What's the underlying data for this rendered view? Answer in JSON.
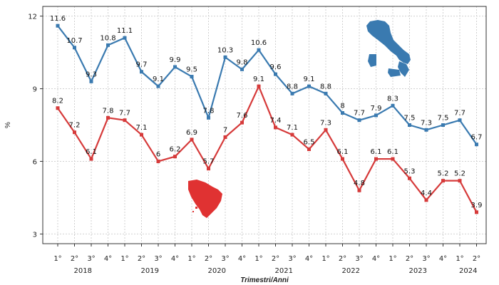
{
  "chart_data": {
    "type": "line",
    "xlabel": "Trimestri/Anni",
    "ylabel": "%",
    "ylim": [
      2.6,
      12.4
    ],
    "yticks": [
      3,
      6,
      9,
      12
    ],
    "grid": true,
    "quarter_labels": [
      "1°",
      "2°",
      "3°",
      "4°",
      "1°",
      "2°",
      "3°",
      "4°",
      "1°",
      "2°",
      "3°",
      "4°",
      "1°",
      "2°",
      "3°",
      "4°",
      "1°",
      "2°",
      "3°",
      "4°",
      "1°",
      "2°",
      "3°",
      "4°",
      "1°",
      "2°"
    ],
    "years": [
      {
        "label": "2018",
        "start": 0,
        "end": 3
      },
      {
        "label": "2019",
        "start": 4,
        "end": 7
      },
      {
        "label": "2020",
        "start": 8,
        "end": 11
      },
      {
        "label": "2021",
        "start": 12,
        "end": 15
      },
      {
        "label": "2022",
        "start": 16,
        "end": 19
      },
      {
        "label": "2023",
        "start": 20,
        "end": 23
      },
      {
        "label": "2024",
        "start": 24,
        "end": 25
      }
    ],
    "series": [
      {
        "color": "#3a7ab0",
        "map_icon": "italy-map-icon",
        "values": [
          11.6,
          10.7,
          9.3,
          10.8,
          11.1,
          9.7,
          9.1,
          9.9,
          9.5,
          7.8,
          10.3,
          9.8,
          10.6,
          9.6,
          8.8,
          9.1,
          8.8,
          8.0,
          7.7,
          7.9,
          8.3,
          7.5,
          7.3,
          7.5,
          7.7,
          6.7
        ]
      },
      {
        "color": "#d63a3a",
        "map_icon": "tuscany-map-icon",
        "values": [
          8.2,
          7.2,
          6.1,
          7.8,
          7.7,
          7.1,
          6.0,
          6.2,
          6.9,
          5.7,
          7.0,
          7.6,
          9.1,
          7.4,
          7.1,
          6.5,
          7.3,
          6.1,
          4.8,
          6.1,
          6.1,
          5.3,
          4.4,
          5.2,
          5.2,
          3.9
        ]
      }
    ]
  }
}
